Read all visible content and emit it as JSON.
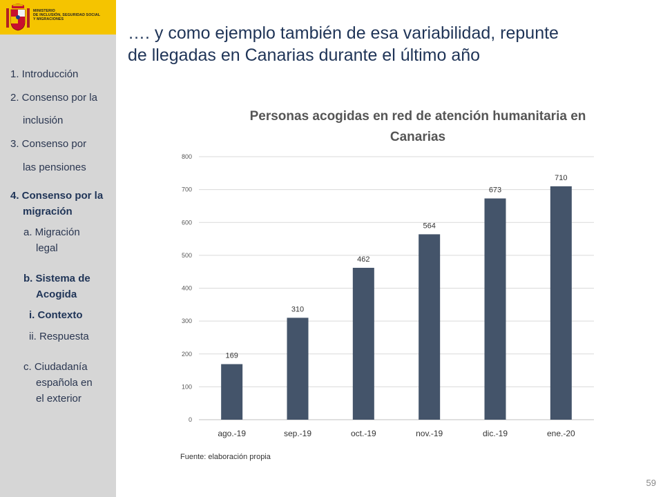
{
  "header": {
    "logo_lines": [
      "MINISTERIO",
      "DE INCLUSIÓN, SEGURIDAD SOCIAL",
      "Y MIGRACIONES"
    ],
    "title_lines": [
      "…. y como ejemplo también de esa variabilidad, repunte",
      "de llegadas en Canarias durante el último año"
    ]
  },
  "sidebar": {
    "items": [
      {
        "label": "1. Introducción",
        "bold": false
      },
      {
        "label": "2. Consenso por la",
        "bold": false
      },
      {
        "label": "inclusión",
        "bold": false
      },
      {
        "label": "3. Consenso por",
        "bold": false
      },
      {
        "label": "las pensiones",
        "bold": false
      },
      {
        "label": "4. Consenso por la",
        "bold": true
      },
      {
        "label": "migración",
        "bold": true
      },
      {
        "label": "a. Migración",
        "bold": false
      },
      {
        "label": "legal",
        "bold": false
      },
      {
        "label": "b. Sistema de",
        "bold": true
      },
      {
        "label": "Acogida",
        "bold": true
      },
      {
        "label": "i.  Contexto",
        "bold": true
      },
      {
        "label": "ii. Respuesta",
        "bold": false
      },
      {
        "label": "c. Ciudadanía",
        "bold": false
      },
      {
        "label": "española en",
        "bold": false
      },
      {
        "label": "el exterior",
        "bold": false
      }
    ]
  },
  "chart_data": {
    "type": "bar",
    "title_lines": [
      "Personas  acogidas en red de atención humanitaria en",
      "Canarias"
    ],
    "categories": [
      "ago.-19",
      "sep.-19",
      "oct.-19",
      "nov.-19",
      "dic.-19",
      "ene.-20"
    ],
    "values": [
      169,
      310,
      462,
      564,
      673,
      710
    ],
    "yticks": [
      0,
      100,
      200,
      300,
      400,
      500,
      600,
      700,
      800
    ],
    "ylim": [
      0,
      800
    ],
    "grid": true,
    "bar_color": "#44546a",
    "xlabel": "",
    "ylabel": ""
  },
  "footer": {
    "source": "Fuente:  elaboración propia",
    "page_number": "59"
  }
}
